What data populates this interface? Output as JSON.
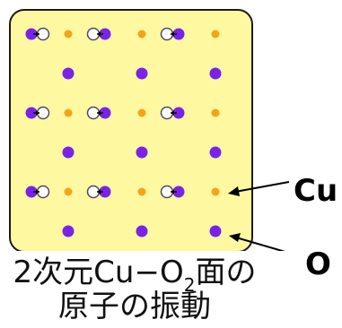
{
  "labels": {
    "cu": "Cu",
    "o": "O"
  },
  "caption": {
    "line1_pre": "2次元Cu−O",
    "line1_sub": "2",
    "line1_post": "面の",
    "line2": "原子の振動"
  },
  "colors": {
    "panel_fill": "#fef8a0",
    "panel_border": "#1a1a1a",
    "copper": "#f5a31a",
    "oxygen": "#7a22e8",
    "displaced_outline": "#4a4a6a",
    "displaced_fill": "#ffffff"
  },
  "lattice": {
    "copper_sites": [
      [
        1,
        0
      ],
      [
        3,
        0
      ],
      [
        5,
        0
      ],
      [
        1,
        2
      ],
      [
        3,
        2
      ],
      [
        5,
        2
      ],
      [
        1,
        4
      ],
      [
        3,
        4
      ],
      [
        5,
        4
      ]
    ],
    "oxygen_sites": [
      [
        0,
        0
      ],
      [
        2,
        0
      ],
      [
        4,
        0
      ],
      [
        1,
        1
      ],
      [
        3,
        1
      ],
      [
        5,
        1
      ],
      [
        0,
        2
      ],
      [
        2,
        2
      ],
      [
        4,
        2
      ],
      [
        1,
        3
      ],
      [
        3,
        3
      ],
      [
        5,
        3
      ],
      [
        0,
        4
      ],
      [
        2,
        4
      ],
      [
        4,
        4
      ],
      [
        1,
        5
      ],
      [
        3,
        5
      ],
      [
        5,
        5
      ]
    ],
    "vibrating_pairs": [
      [
        0,
        0,
        1
      ],
      [
        2,
        0,
        -1
      ],
      [
        4,
        0,
        -1
      ],
      [
        0,
        2,
        1
      ],
      [
        2,
        2,
        -1
      ],
      [
        4,
        2,
        -1
      ],
      [
        0,
        4,
        1
      ],
      [
        2,
        4,
        -1
      ],
      [
        4,
        4,
        -1
      ]
    ]
  }
}
